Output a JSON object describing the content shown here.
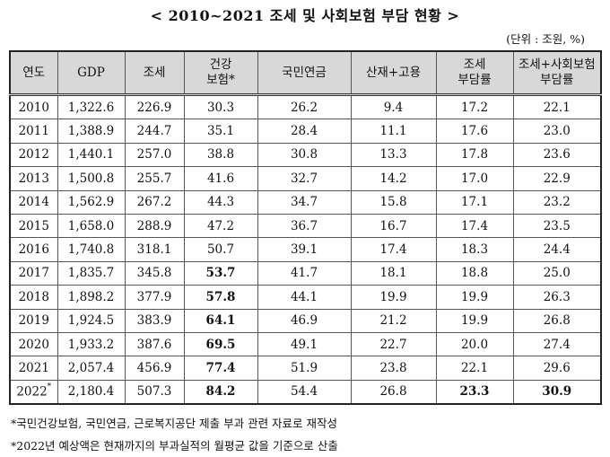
{
  "title": "< 2010~2021 조세 및 사회보험 부담 현황 >",
  "unit": "(단위 : 조원, %)",
  "table": {
    "headers": [
      "연도",
      "GDP",
      "조세",
      "건강\n보험*",
      "국민연금",
      "산재+고용",
      "조세\n부담률",
      "조세+사회보험\n부담률"
    ],
    "rows": [
      [
        "2010",
        "1,322.6",
        "226.9",
        "30.3",
        "26.2",
        "9.4",
        "17.2",
        "22.1"
      ],
      [
        "2011",
        "1,388.9",
        "244.7",
        "35.1",
        "28.4",
        "11.1",
        "17.6",
        "23.0"
      ],
      [
        "2012",
        "1,440.1",
        "257.0",
        "38.8",
        "30.8",
        "13.3",
        "17.8",
        "23.6"
      ],
      [
        "2013",
        "1,500.8",
        "255.7",
        "41.6",
        "32.7",
        "14.2",
        "17.0",
        "22.9"
      ],
      [
        "2014",
        "1,562.9",
        "267.2",
        "44.3",
        "34.7",
        "15.8",
        "17.1",
        "23.2"
      ],
      [
        "2015",
        "1,658.0",
        "288.9",
        "47.2",
        "36.7",
        "16.7",
        "17.4",
        "23.5"
      ],
      [
        "2016",
        "1,740.8",
        "318.1",
        "50.7",
        "39.1",
        "17.4",
        "18.3",
        "24.4"
      ],
      [
        "2017",
        "1,835.7",
        "345.8",
        "53.7",
        "41.7",
        "18.1",
        "18.8",
        "25.0"
      ],
      [
        "2018",
        "1,898.2",
        "377.9",
        "57.8",
        "44.1",
        "19.9",
        "19.9",
        "26.3"
      ],
      [
        "2019",
        "1,924.5",
        "383.9",
        "64.1",
        "46.9",
        "21.2",
        "19.9",
        "26.8"
      ],
      [
        "2020",
        "1,933.2",
        "387.6",
        "69.5",
        "49.1",
        "22.7",
        "20.0",
        "27.4"
      ],
      [
        "2021",
        "2,057.4",
        "456.9",
        "77.4",
        "51.9",
        "23.8",
        "22.1",
        "29.6"
      ],
      [
        "2022",
        "2,180.4",
        "507.3",
        "84.2",
        "54.4",
        "26.8",
        "23.3",
        "30.9"
      ]
    ],
    "last_row_year_mark": "*"
  },
  "notes": [
    "*국민건강보험, 국민연금, 근로복지공단 제출 부과 관련 자료로 재작성",
    "*2022년 예상액은 현재까지의 부과실적의 월평균 값을 기준으로 산출"
  ]
}
